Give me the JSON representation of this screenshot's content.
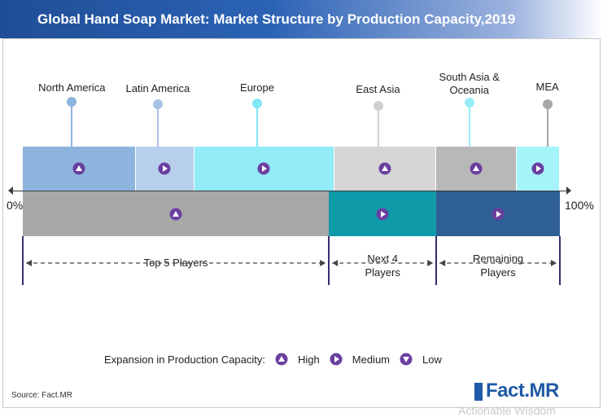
{
  "title": "Global Hand Soap Market: Market Structure by Production Capacity,2019",
  "axis": {
    "start": "0%",
    "end": "100%"
  },
  "regions": [
    {
      "name": "North America",
      "share": 21,
      "expansion": "High",
      "color": "#8db4dc",
      "pin": "#8db4dc"
    },
    {
      "name": "Latin America",
      "share": 11,
      "expansion": "Medium",
      "color": "#b8cfec",
      "pin": "#a8c2e6"
    },
    {
      "name": "Europe",
      "share": 26,
      "expansion": "Medium",
      "color": "#92ebf7",
      "pin": "#7fe6f6"
    },
    {
      "name": "East Asia",
      "share": 19,
      "expansion": "High",
      "color": "#d6d6d6",
      "pin": "#d0d0d0"
    },
    {
      "name": "South Asia & Oceania",
      "share": 15,
      "expansion": "High",
      "color": "#b8b8b8",
      "pin": "#96eff8"
    },
    {
      "name": "MEA",
      "share": 8,
      "expansion": "Medium",
      "color": "#a4f4fa",
      "pin": "#a6a6a6"
    }
  ],
  "players": [
    {
      "name": "Top 5 Players",
      "share": 57,
      "expansion": "High",
      "color": "#a8a8a8"
    },
    {
      "name": "Next 4 Players",
      "share": 20,
      "expansion": "Medium",
      "color": "#0f9aaa"
    },
    {
      "name": "Remaining Players",
      "share": 23,
      "expansion": "Medium",
      "color": "#2e5f95"
    }
  ],
  "legend": {
    "title": "Expansion in Production Capacity:",
    "items": [
      {
        "label": "High",
        "icon": "triangle-up-icon"
      },
      {
        "label": "Medium",
        "icon": "triangle-right-icon"
      },
      {
        "label": "Low",
        "icon": "triangle-down-icon"
      }
    ],
    "icon_color": "#6a3fa0"
  },
  "source": "Source: Fact.MR",
  "logo": {
    "text": "Fact.MR",
    "tagline": "Actionable Wisdom"
  }
}
